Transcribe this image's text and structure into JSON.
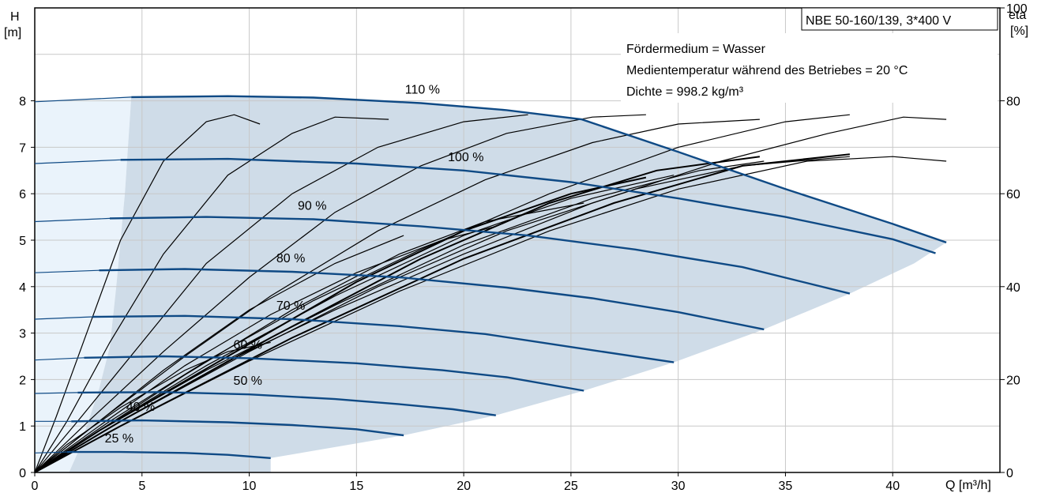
{
  "chart_data": {
    "type": "line",
    "title": "NBE 50-160/139, 3*400 V",
    "info_lines": [
      "Fördermedium = Wasser",
      "Medientemperatur während des Betriebes = 20 °C",
      "Dichte = 998.2 kg/m³"
    ],
    "x_axis": {
      "label": "Q [m³/h]",
      "min": 0,
      "max": 45,
      "ticks": [
        "0",
        "5",
        "10",
        "15",
        "20",
        "25",
        "30",
        "35",
        "40"
      ]
    },
    "y_axis_left": {
      "label_top": "H",
      "label_unit": "[m]",
      "min": 0,
      "max": 10,
      "ticks": [
        "0",
        "1",
        "2",
        "3",
        "4",
        "5",
        "6",
        "7",
        "8"
      ]
    },
    "y_axis_right": {
      "label_top": "eta",
      "label_unit": "[%]",
      "min": 0,
      "max": 100,
      "ticks": [
        "0",
        "20",
        "40",
        "60",
        "80",
        "100"
      ]
    },
    "grid": true,
    "colors": {
      "head_curve": "#0f4a85",
      "efficiency_curve": "#000000",
      "operating_area": "#cfdce8",
      "low_flow_area": "#eaf3fb"
    },
    "head_curves": [
      {
        "name": "110 %",
        "points": [
          [
            0,
            7.98
          ],
          [
            4.5,
            8.08
          ],
          [
            9,
            8.1
          ],
          [
            13,
            8.07
          ],
          [
            18,
            7.95
          ],
          [
            22,
            7.8
          ],
          [
            25.5,
            7.6
          ],
          [
            30,
            6.9
          ],
          [
            35,
            6.1
          ],
          [
            40,
            5.35
          ],
          [
            42.5,
            4.95
          ]
        ]
      },
      {
        "name": "100 %",
        "points": [
          [
            0,
            6.65
          ],
          [
            4,
            6.73
          ],
          [
            9,
            6.75
          ],
          [
            15,
            6.65
          ],
          [
            20,
            6.5
          ],
          [
            25,
            6.25
          ],
          [
            30,
            5.9
          ],
          [
            35,
            5.5
          ],
          [
            40,
            5.02
          ],
          [
            42,
            4.72
          ]
        ]
      },
      {
        "name": "90 %",
        "points": [
          [
            0,
            5.4
          ],
          [
            3.5,
            5.47
          ],
          [
            8,
            5.5
          ],
          [
            13,
            5.45
          ],
          [
            18,
            5.3
          ],
          [
            23,
            5.1
          ],
          [
            28,
            4.8
          ],
          [
            33,
            4.42
          ],
          [
            38,
            3.85
          ]
        ]
      },
      {
        "name": "80 %",
        "points": [
          [
            0,
            4.3
          ],
          [
            3,
            4.35
          ],
          [
            7,
            4.38
          ],
          [
            12,
            4.32
          ],
          [
            17,
            4.2
          ],
          [
            22,
            3.98
          ],
          [
            26,
            3.75
          ],
          [
            30,
            3.45
          ],
          [
            34,
            3.08
          ]
        ]
      },
      {
        "name": "70 %",
        "points": [
          [
            0,
            3.3
          ],
          [
            2.7,
            3.35
          ],
          [
            7,
            3.37
          ],
          [
            12,
            3.3
          ],
          [
            17,
            3.15
          ],
          [
            21,
            2.98
          ],
          [
            25,
            2.7
          ],
          [
            29.8,
            2.37
          ]
        ]
      },
      {
        "name": "60 %",
        "points": [
          [
            0,
            2.42
          ],
          [
            2.3,
            2.47
          ],
          [
            6,
            2.5
          ],
          [
            10,
            2.46
          ],
          [
            15,
            2.35
          ],
          [
            19,
            2.2
          ],
          [
            22,
            2.05
          ],
          [
            25.6,
            1.76
          ]
        ]
      },
      {
        "name": "50 %",
        "points": [
          [
            0,
            1.7
          ],
          [
            2,
            1.72
          ],
          [
            6,
            1.73
          ],
          [
            10,
            1.68
          ],
          [
            14,
            1.58
          ],
          [
            17,
            1.47
          ],
          [
            19.5,
            1.36
          ],
          [
            21.5,
            1.23
          ]
        ]
      },
      {
        "name": "40 %",
        "points": [
          [
            0,
            1.1
          ],
          [
            1.7,
            1.1
          ],
          [
            5,
            1.12
          ],
          [
            9,
            1.08
          ],
          [
            12,
            1.02
          ],
          [
            15,
            0.93
          ],
          [
            17.2,
            0.8
          ]
        ]
      },
      {
        "name": "25 %",
        "points": [
          [
            0,
            0.42
          ],
          [
            1.5,
            0.44
          ],
          [
            4,
            0.44
          ],
          [
            7,
            0.42
          ],
          [
            9,
            0.38
          ],
          [
            11,
            0.31
          ]
        ]
      }
    ],
    "efficiency_curves": [
      {
        "points": [
          [
            0,
            0
          ],
          [
            1,
            12
          ],
          [
            2.5,
            31
          ],
          [
            4,
            50
          ],
          [
            6,
            67
          ],
          [
            8,
            75.5
          ],
          [
            9.3,
            77
          ],
          [
            10.5,
            75
          ]
        ]
      },
      {
        "points": [
          [
            0,
            0
          ],
          [
            1.5,
            11
          ],
          [
            3.5,
            28
          ],
          [
            6,
            47
          ],
          [
            9,
            64
          ],
          [
            12,
            73
          ],
          [
            14,
            76.5
          ],
          [
            16.5,
            76
          ]
        ]
      },
      {
        "points": [
          [
            0,
            0
          ],
          [
            2,
            11
          ],
          [
            5,
            28
          ],
          [
            8,
            45
          ],
          [
            12,
            60
          ],
          [
            16,
            70
          ],
          [
            20,
            75.5
          ],
          [
            23,
            77
          ]
        ]
      },
      {
        "points": [
          [
            0,
            0
          ],
          [
            2.5,
            11
          ],
          [
            6,
            26
          ],
          [
            10,
            42
          ],
          [
            14,
            56
          ],
          [
            18,
            66
          ],
          [
            22,
            73
          ],
          [
            26,
            76.5
          ],
          [
            28.5,
            77
          ]
        ]
      },
      {
        "points": [
          [
            0,
            0
          ],
          [
            3,
            11
          ],
          [
            7,
            25
          ],
          [
            11,
            38
          ],
          [
            16,
            52
          ],
          [
            21,
            63
          ],
          [
            26,
            71
          ],
          [
            30,
            75
          ],
          [
            33.8,
            76
          ]
        ]
      },
      {
        "points": [
          [
            0,
            0
          ],
          [
            3.5,
            11
          ],
          [
            8,
            24
          ],
          [
            13,
            37
          ],
          [
            18,
            48
          ],
          [
            24,
            60
          ],
          [
            30,
            70
          ],
          [
            35,
            75.5
          ],
          [
            38,
            77
          ]
        ]
      },
      {
        "points": [
          [
            0,
            0
          ],
          [
            4,
            11
          ],
          [
            9,
            24
          ],
          [
            14,
            35
          ],
          [
            20,
            47
          ],
          [
            26,
            58
          ],
          [
            32,
            67
          ],
          [
            37,
            73
          ],
          [
            40.5,
            76.5
          ],
          [
            42.5,
            76
          ]
        ]
      },
      {
        "points": [
          [
            0,
            0
          ],
          [
            1.5,
            6
          ],
          [
            4,
            14
          ],
          [
            7,
            22
          ],
          [
            9,
            26
          ],
          [
            11,
            28
          ]
        ]
      },
      {
        "points": [
          [
            0,
            0
          ],
          [
            3,
            11
          ],
          [
            6,
            22
          ],
          [
            10,
            35
          ],
          [
            14,
            45
          ],
          [
            17.2,
            51
          ]
        ]
      },
      {
        "points": [
          [
            0,
            0
          ],
          [
            3,
            10
          ],
          [
            7,
            23
          ],
          [
            11,
            34
          ],
          [
            15,
            43
          ],
          [
            19,
            50
          ],
          [
            21.5,
            53
          ]
        ]
      },
      {
        "points": [
          [
            0,
            0
          ],
          [
            3,
            9
          ],
          [
            7,
            21
          ],
          [
            12,
            35
          ],
          [
            17,
            47
          ],
          [
            21,
            54
          ],
          [
            25.6,
            58
          ]
        ]
      },
      {
        "points": [
          [
            0,
            0
          ],
          [
            3,
            9
          ],
          [
            8,
            23
          ],
          [
            14,
            38
          ],
          [
            20,
            51
          ],
          [
            25,
            59
          ],
          [
            29.8,
            64
          ]
        ]
      },
      {
        "points": [
          [
            0,
            0
          ],
          [
            3,
            9
          ],
          [
            8,
            22
          ],
          [
            14,
            36
          ],
          [
            20,
            49
          ],
          [
            26,
            59
          ],
          [
            31,
            65
          ],
          [
            34,
            67
          ]
        ]
      },
      {
        "points": [
          [
            0,
            0
          ],
          [
            4,
            11
          ],
          [
            10,
            26
          ],
          [
            16,
            40
          ],
          [
            22,
            52
          ],
          [
            28,
            61
          ],
          [
            33,
            66
          ],
          [
            38,
            68
          ]
        ]
      },
      {
        "points": [
          [
            0,
            0
          ],
          [
            4,
            10
          ],
          [
            10,
            24
          ],
          [
            17,
            39
          ],
          [
            24,
            52
          ],
          [
            30,
            61
          ],
          [
            36,
            67
          ],
          [
            40,
            68
          ],
          [
            42.5,
            67
          ]
        ]
      },
      {
        "points": [
          [
            0,
            0
          ],
          [
            3,
            9
          ],
          [
            9,
            25
          ],
          [
            15,
            41
          ],
          [
            20,
            52
          ],
          [
            25,
            60
          ],
          [
            28.5,
            63.5
          ]
        ]
      },
      {
        "points": [
          [
            0,
            0
          ],
          [
            4,
            11
          ],
          [
            11,
            29
          ],
          [
            18,
            46
          ],
          [
            24,
            58
          ],
          [
            29,
            65
          ],
          [
            33.8,
            68
          ]
        ]
      },
      {
        "points": [
          [
            0,
            0
          ],
          [
            4,
            10
          ],
          [
            12,
            29
          ],
          [
            20,
            46
          ],
          [
            27,
            58
          ],
          [
            33,
            66
          ],
          [
            38,
            68.5
          ]
        ]
      }
    ],
    "operating_area": {
      "outline": [
        [
          1.6,
          0
        ],
        [
          2,
          0.42
        ],
        [
          2.5,
          1.1
        ],
        [
          3,
          1.8
        ],
        [
          3.5,
          2.7
        ],
        [
          3.8,
          4
        ],
        [
          4.2,
          6
        ],
        [
          4.5,
          8.08
        ],
        [
          9,
          8.1
        ],
        [
          13,
          8.07
        ],
        [
          18,
          7.95
        ],
        [
          22,
          7.8
        ],
        [
          25.5,
          7.6
        ],
        [
          30,
          6.9
        ],
        [
          35,
          6.1
        ],
        [
          40,
          5.35
        ],
        [
          42.5,
          4.95
        ],
        [
          41,
          4.5
        ],
        [
          38,
          3.85
        ],
        [
          34,
          3.08
        ],
        [
          29.8,
          2.37
        ],
        [
          25.6,
          1.76
        ],
        [
          21.5,
          1.23
        ],
        [
          17.2,
          0.8
        ],
        [
          11,
          0.31
        ],
        [
          11,
          0
        ]
      ]
    },
    "low_flow_area": {
      "outline": [
        [
          0,
          0
        ],
        [
          0,
          7.98
        ],
        [
          4.5,
          8.08
        ],
        [
          4.2,
          6
        ],
        [
          3.8,
          4
        ],
        [
          3.5,
          2.7
        ],
        [
          3,
          1.8
        ],
        [
          2.5,
          1.1
        ],
        [
          2,
          0.42
        ],
        [
          1.6,
          0
        ]
      ]
    }
  }
}
